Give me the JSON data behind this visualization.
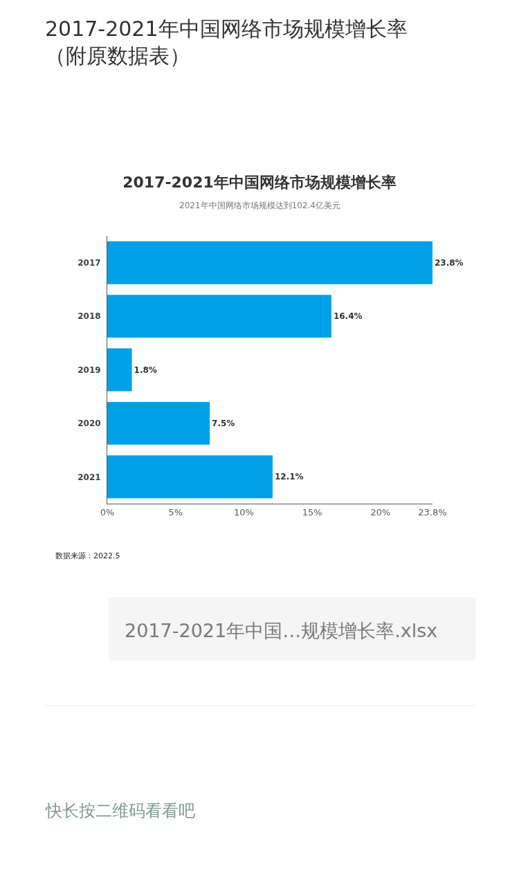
{
  "chart_data": {
    "type": "bar",
    "orientation": "horizontal",
    "title": "2017-2021年中国网络市场规模增长率",
    "subtitle": "2021年中国网络市场规模达到102.4亿美元",
    "annotations": [
      "2017-2021年中国网络市场规模增长率（附原数据表）",
      "数据来源：2022.5",
      "2017-2021年中国…规模增长率.xlsx",
      "快长按二维码看看吧"
    ],
    "categories": [
      "2017",
      "2018",
      "2019",
      "2020",
      "2021"
    ],
    "values": [
      23.8,
      16.4,
      1.8,
      7.5,
      12.1
    ],
    "value_labels": [
      "23.8%",
      "16.4%",
      "1.8%",
      "7.5%",
      "12.1%"
    ],
    "color": "#00a0e9",
    "xlim": [
      0,
      23.8
    ],
    "xticks": [
      {
        "value": 0,
        "label": "0%"
      },
      {
        "value": 5,
        "label": "5%"
      },
      {
        "value": 10,
        "label": "10%"
      },
      {
        "value": 15,
        "label": "15%"
      },
      {
        "value": 20,
        "label": "20%"
      },
      {
        "value": 23.8,
        "label": "23.8%"
      }
    ]
  }
}
